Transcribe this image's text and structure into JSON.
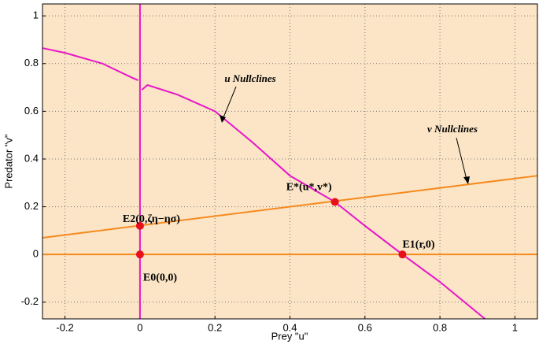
{
  "chart_data": {
    "type": "line",
    "x_label": "Prey \"u\"",
    "y_label": "Predator \"v\"",
    "xlim": [
      -0.26,
      1.06
    ],
    "ylim": [
      -0.27,
      1.05
    ],
    "xticks": [
      -0.2,
      0,
      0.2,
      0.4,
      0.6,
      0.8,
      1
    ],
    "yticks": [
      -0.2,
      0,
      0.2,
      0.4,
      0.6,
      0.8,
      1
    ],
    "grid": true,
    "background": "#fbe5c6",
    "series": [
      {
        "color": "#e815c8",
        "x": [
          -0.26,
          -0.2,
          -0.1,
          -0.02,
          -0.005,
          0,
          0.005,
          0.02,
          0.1,
          0.2,
          0.3,
          0.4,
          0.52,
          0.6,
          0.7,
          0.8,
          0.92
        ],
        "values": [
          0.865,
          0.845,
          0.8,
          0.74,
          0.73,
          null,
          0.69,
          0.71,
          0.67,
          0.6,
          0.47,
          0.33,
          0.22,
          0.12,
          0,
          -0.115,
          -0.27
        ]
      },
      {
        "color": "#e815c8",
        "x": [
          0,
          0
        ],
        "values": [
          -0.27,
          1.05
        ]
      },
      {
        "color": "#f58a1f",
        "x": [
          -0.26,
          1.06
        ],
        "values": [
          0.07,
          0.33
        ]
      },
      {
        "color": "#f58a1f",
        "x": [
          -0.26,
          1.06
        ],
        "values": [
          0,
          0
        ]
      }
    ],
    "points": {
      "color": "#e8111b",
      "x": [
        0,
        0,
        0.52,
        0.7
      ],
      "values": [
        0,
        0.12,
        0.22,
        0
      ],
      "labels": [
        "E0(0,0)",
        "E2(0,ζη−ησ)",
        "E*(u*,v*)",
        "E1(r,0)"
      ]
    },
    "annotations": [
      "u Nullclines",
      "v Nullclines"
    ]
  }
}
